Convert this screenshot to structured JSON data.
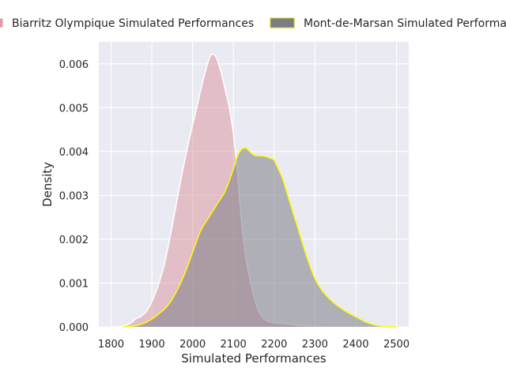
{
  "chart_data": {
    "type": "area",
    "xlabel": "Simulated Performances",
    "ylabel": "Density",
    "xlim": [
      1770,
      2530
    ],
    "ylim": [
      0,
      0.0065
    ],
    "x_ticks": [
      1800,
      1900,
      2000,
      2100,
      2200,
      2300,
      2400,
      2500
    ],
    "x_tick_labels": [
      "1800",
      "1900",
      "2000",
      "2100",
      "2200",
      "2300",
      "2400",
      "2500"
    ],
    "y_ticks": [
      0,
      0.001,
      0.002,
      0.003,
      0.004,
      0.005,
      0.006
    ],
    "y_tick_labels": [
      "0.000",
      "0.001",
      "0.002",
      "0.003",
      "0.004",
      "0.005",
      "0.006"
    ],
    "grid": true,
    "legend_position": "top",
    "series": [
      {
        "name": "Biarritz Olympique Simulated Performances",
        "fill_color": "#d98a92",
        "line_color": "#ffffff",
        "fill_opacity": 0.45,
        "x": [
          1800,
          1830,
          1850,
          1860,
          1875,
          1890,
          1910,
          1930,
          1950,
          1970,
          1990,
          2010,
          2025,
          2040,
          2050,
          2060,
          2070,
          2080,
          2090,
          2100,
          2110,
          2120,
          2130,
          2140,
          2150,
          2160,
          2170,
          2180,
          2200,
          2230,
          2260,
          2290,
          2320,
          2350
        ],
        "y": [
          0,
          2e-05,
          0.0001,
          0.00018,
          0.00025,
          0.0004,
          0.0008,
          0.0014,
          0.0023,
          0.0033,
          0.0042,
          0.005,
          0.0056,
          0.0061,
          0.00622,
          0.0061,
          0.0058,
          0.0054,
          0.005,
          0.0044,
          0.0035,
          0.0024,
          0.0016,
          0.0011,
          0.0007,
          0.0004,
          0.00024,
          0.00015,
          0.0001,
          7e-05,
          4e-05,
          2e-05,
          5e-06,
          0
        ]
      },
      {
        "name": "Mont-de-Marsan Simulated Performances",
        "fill_color": "#7d7d86",
        "line_color": "#ffff00",
        "fill_opacity": 0.55,
        "x": [
          1830,
          1860,
          1880,
          1900,
          1920,
          1940,
          1960,
          1980,
          2000,
          2020,
          2040,
          2060,
          2080,
          2100,
          2110,
          2120,
          2130,
          2140,
          2150,
          2160,
          2170,
          2180,
          2190,
          2200,
          2210,
          2220,
          2230,
          2240,
          2250,
          2260,
          2280,
          2300,
          2320,
          2340,
          2360,
          2380,
          2400,
          2420,
          2440,
          2460,
          2480,
          2500
        ],
        "y": [
          0,
          3e-05,
          8e-05,
          0.00018,
          0.00032,
          0.0005,
          0.0008,
          0.0012,
          0.0017,
          0.0022,
          0.0025,
          0.0028,
          0.0031,
          0.0036,
          0.0039,
          0.00405,
          0.00408,
          0.004,
          0.00392,
          0.0039,
          0.0039,
          0.00388,
          0.00385,
          0.0038,
          0.0036,
          0.0034,
          0.0031,
          0.0028,
          0.0025,
          0.0022,
          0.0016,
          0.0011,
          0.0008,
          0.0006,
          0.00045,
          0.00033,
          0.00023,
          0.00013,
          6e-05,
          2e-05,
          5e-06,
          0
        ]
      }
    ]
  }
}
